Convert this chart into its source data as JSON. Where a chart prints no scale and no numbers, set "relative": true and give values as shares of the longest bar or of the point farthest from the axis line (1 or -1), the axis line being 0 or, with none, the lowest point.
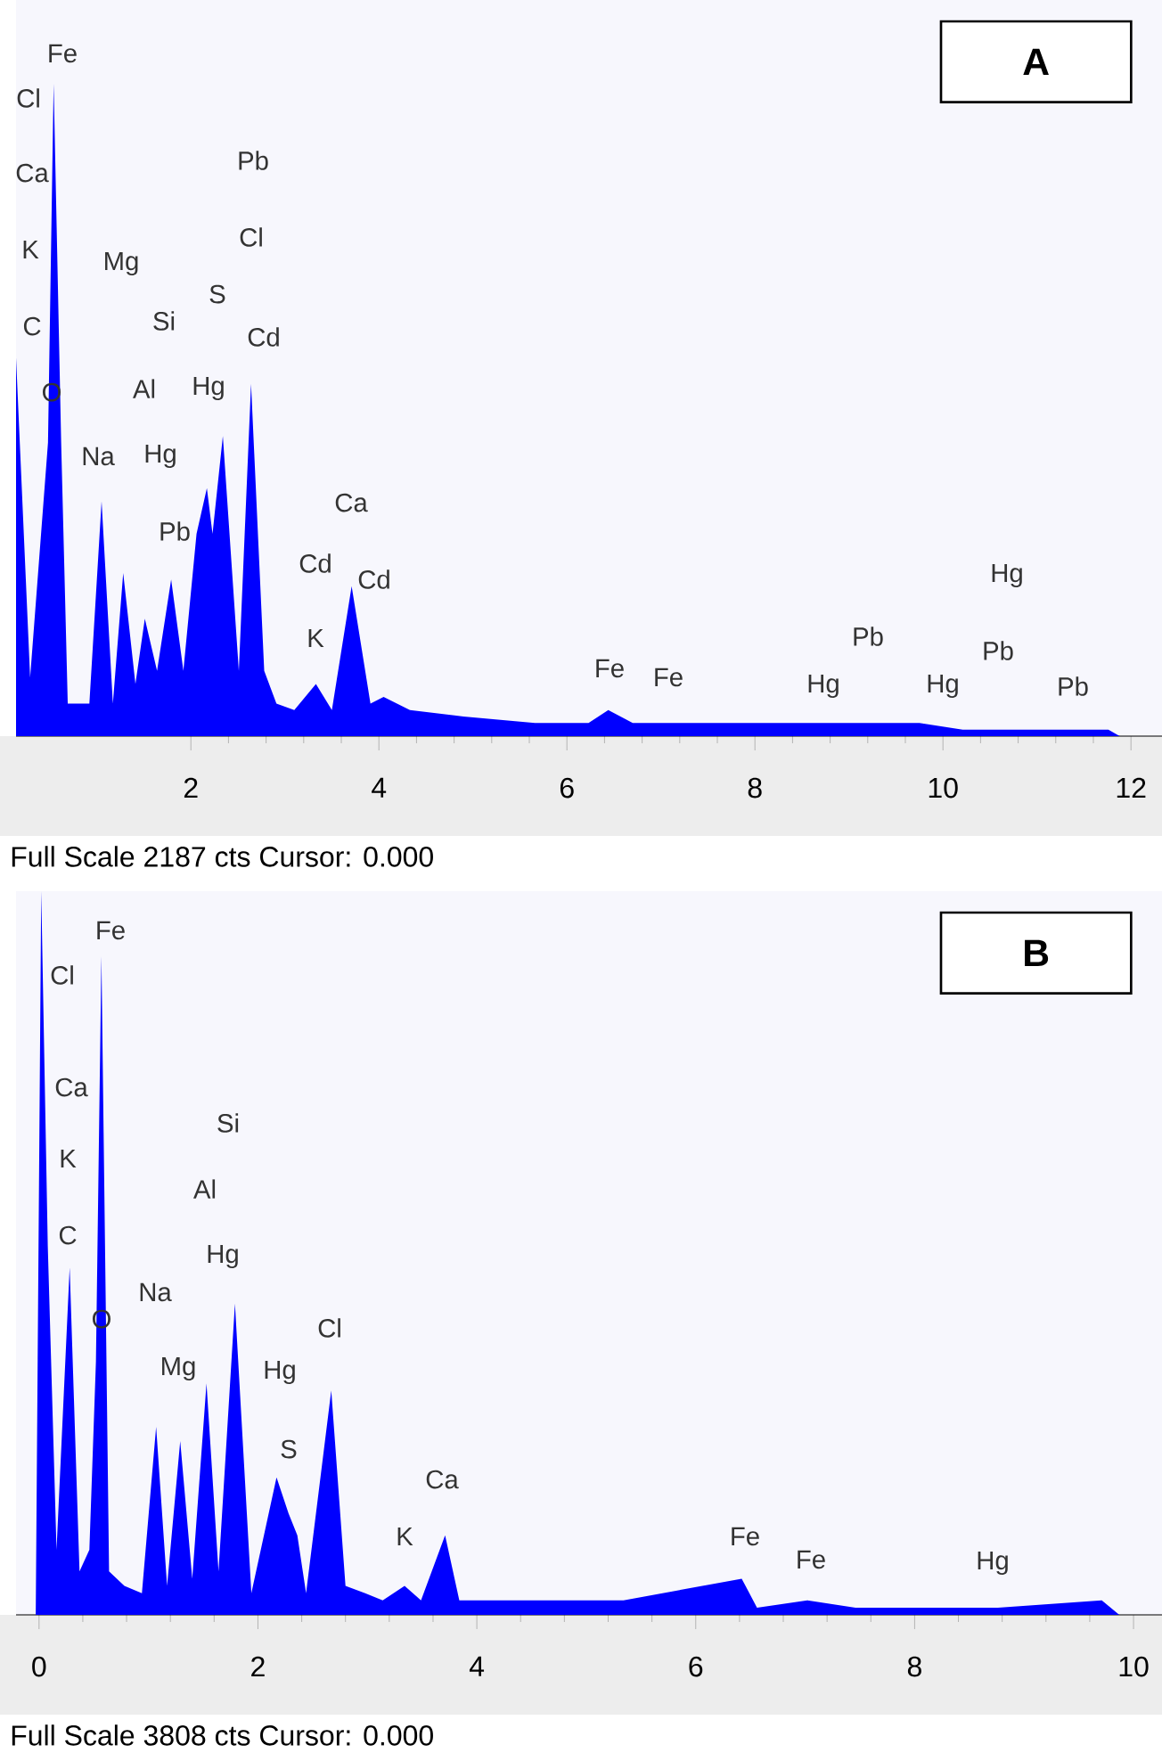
{
  "chart_data": [
    {
      "type": "area",
      "title": "A",
      "relative": true,
      "color": "#0000ff",
      "x": [
        0.14,
        0.29,
        0.48,
        0.54,
        0.62,
        0.69,
        0.92,
        1.05,
        1.17,
        1.28,
        1.41,
        1.51,
        1.64,
        1.79,
        1.92,
        2.06,
        2.17,
        2.23,
        2.34,
        2.51,
        2.64,
        2.78,
        2.91,
        3.1,
        3.33,
        3.5,
        3.71,
        3.91,
        4.05,
        4.33,
        4.9,
        5.66,
        6.23,
        6.44,
        6.7,
        7.55,
        8.69,
        9.75,
        10.21,
        11.35,
        11.76,
        11.88
      ],
      "values": [
        0.58,
        0.09,
        0.45,
        1.0,
        0.45,
        0.05,
        0.05,
        0.36,
        0.05,
        0.25,
        0.08,
        0.18,
        0.1,
        0.24,
        0.1,
        0.31,
        0.38,
        0.31,
        0.46,
        0.1,
        0.54,
        0.1,
        0.05,
        0.04,
        0.08,
        0.04,
        0.23,
        0.05,
        0.06,
        0.04,
        0.03,
        0.02,
        0.02,
        0.04,
        0.02,
        0.02,
        0.02,
        0.02,
        0.01,
        0.01,
        0.01,
        0
      ],
      "xlim": [
        0.14,
        12.33
      ],
      "xticks": [
        2,
        4,
        6,
        8,
        10,
        12
      ],
      "annotations": [
        "Full Scale 2187 cts Cursor: 0.000",
        "Cl",
        "Ca",
        "K",
        "C",
        "O",
        "Fe",
        "Mg",
        "Si",
        "Al",
        "Na",
        "Hg",
        "Pb",
        "S",
        "Hg",
        "Pb",
        "Cl",
        "Cd",
        "Cd",
        "K",
        "Ca",
        "Cd",
        "Fe",
        "Fe",
        "Hg",
        "Pb",
        "Hg",
        "Pb",
        "Hg",
        "Pb"
      ]
    },
    {
      "type": "area",
      "title": "B",
      "relative": true,
      "color": "#0000ff",
      "x": [
        -0.03,
        0.02,
        0.08,
        0.16,
        0.28,
        0.37,
        0.46,
        0.52,
        0.57,
        0.64,
        0.78,
        0.94,
        1.07,
        1.17,
        1.29,
        1.4,
        1.53,
        1.64,
        1.79,
        1.94,
        2.17,
        2.28,
        2.36,
        2.44,
        2.67,
        2.8,
        2.98,
        3.14,
        3.34,
        3.49,
        3.71,
        3.84,
        4.04,
        4.53,
        5.34,
        6.42,
        6.56,
        7.02,
        7.46,
        8.76,
        9.71,
        9.87
      ],
      "values": [
        0,
        1.0,
        0.51,
        0.09,
        0.48,
        0.06,
        0.09,
        0.35,
        0.91,
        0.06,
        0.04,
        0.03,
        0.26,
        0.04,
        0.24,
        0.05,
        0.32,
        0.06,
        0.43,
        0.03,
        0.19,
        0.14,
        0.11,
        0.03,
        0.31,
        0.04,
        0.03,
        0.02,
        0.04,
        0.02,
        0.11,
        0.02,
        0.02,
        0.02,
        0.02,
        0.05,
        0.01,
        0.02,
        0.01,
        0.01,
        0.02,
        0
      ],
      "xlim": [
        -0.21,
        10.26
      ],
      "xticks": [
        0,
        2,
        4,
        6,
        8,
        10
      ],
      "annotations": [
        "Full Scale 3808 cts Cursor: 0.000",
        "Fe",
        "Cl",
        "Ca",
        "K",
        "C",
        "O",
        "Na",
        "Mg",
        "Si",
        "Al",
        "Hg",
        "Hg",
        "S",
        "Cl",
        "K",
        "Ca",
        "Fe",
        "Fe",
        "Hg"
      ]
    }
  ]
}
